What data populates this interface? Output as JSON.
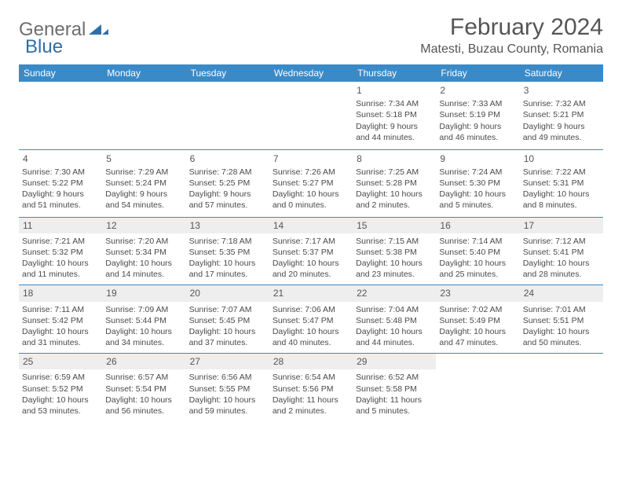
{
  "brand": {
    "part1": "General",
    "part2": "Blue"
  },
  "title": "February 2024",
  "location": "Matesti, Buzau County, Romania",
  "colors": {
    "header_bg": "#3a8ac8",
    "header_text": "#ffffff",
    "rule": "#3a8ac8",
    "band_bg": "#eeeeee",
    "text": "#4a4a4a",
    "brand_grey": "#6e6e6e",
    "brand_blue": "#2f6fa7"
  },
  "weekdays": [
    "Sunday",
    "Monday",
    "Tuesday",
    "Wednesday",
    "Thursday",
    "Friday",
    "Saturday"
  ],
  "weeks": [
    {
      "band": false,
      "days": [
        null,
        null,
        null,
        null,
        {
          "n": "1",
          "sunrise": "7:34 AM",
          "sunset": "5:18 PM",
          "day_h": 9,
          "day_m": 44
        },
        {
          "n": "2",
          "sunrise": "7:33 AM",
          "sunset": "5:19 PM",
          "day_h": 9,
          "day_m": 46
        },
        {
          "n": "3",
          "sunrise": "7:32 AM",
          "sunset": "5:21 PM",
          "day_h": 9,
          "day_m": 49
        }
      ]
    },
    {
      "band": false,
      "days": [
        {
          "n": "4",
          "sunrise": "7:30 AM",
          "sunset": "5:22 PM",
          "day_h": 9,
          "day_m": 51
        },
        {
          "n": "5",
          "sunrise": "7:29 AM",
          "sunset": "5:24 PM",
          "day_h": 9,
          "day_m": 54
        },
        {
          "n": "6",
          "sunrise": "7:28 AM",
          "sunset": "5:25 PM",
          "day_h": 9,
          "day_m": 57
        },
        {
          "n": "7",
          "sunrise": "7:26 AM",
          "sunset": "5:27 PM",
          "day_h": 10,
          "day_m": 0
        },
        {
          "n": "8",
          "sunrise": "7:25 AM",
          "sunset": "5:28 PM",
          "day_h": 10,
          "day_m": 2
        },
        {
          "n": "9",
          "sunrise": "7:24 AM",
          "sunset": "5:30 PM",
          "day_h": 10,
          "day_m": 5
        },
        {
          "n": "10",
          "sunrise": "7:22 AM",
          "sunset": "5:31 PM",
          "day_h": 10,
          "day_m": 8
        }
      ]
    },
    {
      "band": true,
      "days": [
        {
          "n": "11",
          "sunrise": "7:21 AM",
          "sunset": "5:32 PM",
          "day_h": 10,
          "day_m": 11
        },
        {
          "n": "12",
          "sunrise": "7:20 AM",
          "sunset": "5:34 PM",
          "day_h": 10,
          "day_m": 14
        },
        {
          "n": "13",
          "sunrise": "7:18 AM",
          "sunset": "5:35 PM",
          "day_h": 10,
          "day_m": 17
        },
        {
          "n": "14",
          "sunrise": "7:17 AM",
          "sunset": "5:37 PM",
          "day_h": 10,
          "day_m": 20
        },
        {
          "n": "15",
          "sunrise": "7:15 AM",
          "sunset": "5:38 PM",
          "day_h": 10,
          "day_m": 23
        },
        {
          "n": "16",
          "sunrise": "7:14 AM",
          "sunset": "5:40 PM",
          "day_h": 10,
          "day_m": 25
        },
        {
          "n": "17",
          "sunrise": "7:12 AM",
          "sunset": "5:41 PM",
          "day_h": 10,
          "day_m": 28
        }
      ]
    },
    {
      "band": true,
      "days": [
        {
          "n": "18",
          "sunrise": "7:11 AM",
          "sunset": "5:42 PM",
          "day_h": 10,
          "day_m": 31
        },
        {
          "n": "19",
          "sunrise": "7:09 AM",
          "sunset": "5:44 PM",
          "day_h": 10,
          "day_m": 34
        },
        {
          "n": "20",
          "sunrise": "7:07 AM",
          "sunset": "5:45 PM",
          "day_h": 10,
          "day_m": 37
        },
        {
          "n": "21",
          "sunrise": "7:06 AM",
          "sunset": "5:47 PM",
          "day_h": 10,
          "day_m": 40
        },
        {
          "n": "22",
          "sunrise": "7:04 AM",
          "sunset": "5:48 PM",
          "day_h": 10,
          "day_m": 44
        },
        {
          "n": "23",
          "sunrise": "7:02 AM",
          "sunset": "5:49 PM",
          "day_h": 10,
          "day_m": 47
        },
        {
          "n": "24",
          "sunrise": "7:01 AM",
          "sunset": "5:51 PM",
          "day_h": 10,
          "day_m": 50
        }
      ]
    },
    {
      "band": true,
      "days": [
        {
          "n": "25",
          "sunrise": "6:59 AM",
          "sunset": "5:52 PM",
          "day_h": 10,
          "day_m": 53
        },
        {
          "n": "26",
          "sunrise": "6:57 AM",
          "sunset": "5:54 PM",
          "day_h": 10,
          "day_m": 56
        },
        {
          "n": "27",
          "sunrise": "6:56 AM",
          "sunset": "5:55 PM",
          "day_h": 10,
          "day_m": 59
        },
        {
          "n": "28",
          "sunrise": "6:54 AM",
          "sunset": "5:56 PM",
          "day_h": 11,
          "day_m": 2
        },
        {
          "n": "29",
          "sunrise": "6:52 AM",
          "sunset": "5:58 PM",
          "day_h": 11,
          "day_m": 5
        },
        null,
        null
      ]
    }
  ],
  "labels": {
    "sunrise": "Sunrise:",
    "sunset": "Sunset:",
    "daylight": "Daylight:",
    "hours": "hours",
    "and": "and",
    "minutes": "minutes."
  }
}
